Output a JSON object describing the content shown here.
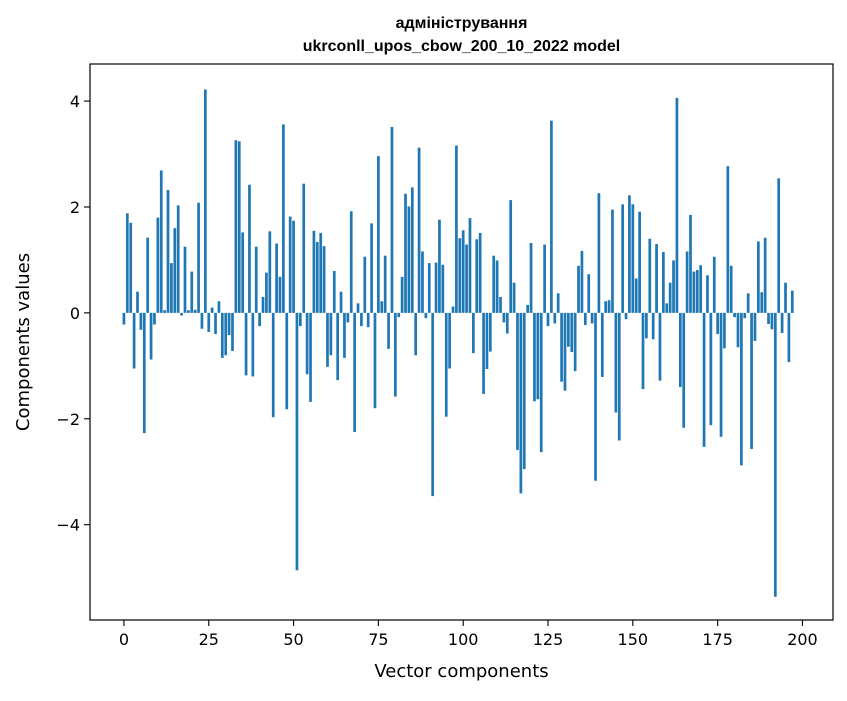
{
  "chart_data": {
    "type": "bar",
    "title": "адміністрування",
    "subtitle": "ukrconll_upos_cbow_200_10_2022 model",
    "xlabel": "Vector components",
    "ylabel": "Components values",
    "xlim": [
      -10,
      209
    ],
    "ylim": [
      -5.8,
      4.7
    ],
    "xticks": [
      0,
      25,
      50,
      75,
      100,
      125,
      150,
      175,
      200
    ],
    "yticks": [
      -4,
      -2,
      0,
      2,
      4
    ],
    "ytick_labels": [
      "−4",
      "−2",
      "0",
      "2",
      "4"
    ],
    "grid": false,
    "bar_color": "#1f77b4",
    "values": [
      -0.22,
      1.88,
      1.7,
      -1.05,
      0.4,
      -0.32,
      -2.27,
      1.42,
      -0.88,
      -0.22,
      1.8,
      2.69,
      0.05,
      2.32,
      0.94,
      1.6,
      2.03,
      -0.05,
      1.25,
      0.05,
      0.78,
      0.06,
      2.08,
      -0.3,
      4.22,
      -0.36,
      0.1,
      -0.4,
      0.22,
      -0.85,
      -0.8,
      -0.42,
      -0.72,
      3.26,
      3.24,
      1.52,
      -1.18,
      2.42,
      -1.2,
      1.25,
      -0.25,
      0.3,
      0.76,
      1.54,
      -1.97,
      1.31,
      0.68,
      3.56,
      -1.82,
      1.82,
      1.74,
      -4.86,
      -0.25,
      2.44,
      -1.16,
      -1.68,
      1.55,
      1.34,
      1.51,
      1.26,
      -1.02,
      -0.8,
      0.79,
      -1.27,
      0.4,
      -0.85,
      -0.18,
      1.92,
      -2.25,
      0.18,
      -0.25,
      1.06,
      -0.27,
      1.69,
      -1.8,
      2.96,
      0.22,
      1.08,
      -0.68,
      3.51,
      -1.58,
      -0.08,
      0.68,
      2.25,
      2.01,
      2.37,
      -0.8,
      3.12,
      1.16,
      -0.1,
      0.94,
      -3.46,
      0.95,
      1.76,
      0.91,
      -1.96,
      -1.05,
      0.12,
      3.16,
      1.41,
      1.56,
      1.29,
      1.79,
      -0.76,
      1.39,
      1.51,
      -1.53,
      -1.06,
      -0.73,
      1.08,
      0.99,
      0.3,
      -0.18,
      -0.39,
      2.13,
      0.57,
      -2.59,
      -3.41,
      -2.95,
      0.15,
      1.32,
      -1.67,
      -1.63,
      -2.63,
      1.29,
      -0.25,
      3.63,
      -0.2,
      0.37,
      -1.3,
      -1.47,
      -0.64,
      -0.74,
      -1.1,
      0.89,
      1.17,
      -0.23,
      0.73,
      -0.2,
      -3.17,
      2.26,
      -1.21,
      0.22,
      0.24,
      1.95,
      -1.88,
      -2.41,
      2.05,
      -0.12,
      2.22,
      2.05,
      0.65,
      1.91,
      -1.44,
      -0.48,
      1.4,
      -0.5,
      1.3,
      -1.28,
      1.15,
      0.18,
      0.57,
      0.99,
      4.06,
      -1.4,
      -2.17,
      1.16,
      1.85,
      0.78,
      0.81,
      0.9,
      -2.53,
      0.71,
      -2.12,
      1.06,
      -0.4,
      -2.34,
      -0.67,
      2.77,
      0.89,
      -0.08,
      -0.65,
      -2.88,
      -0.1,
      0.37,
      -2.57,
      -0.53,
      1.35,
      0.39,
      1.42,
      -0.21,
      -0.31,
      -5.36,
      2.54,
      -0.38,
      0.57,
      -0.93,
      0.42
    ]
  }
}
